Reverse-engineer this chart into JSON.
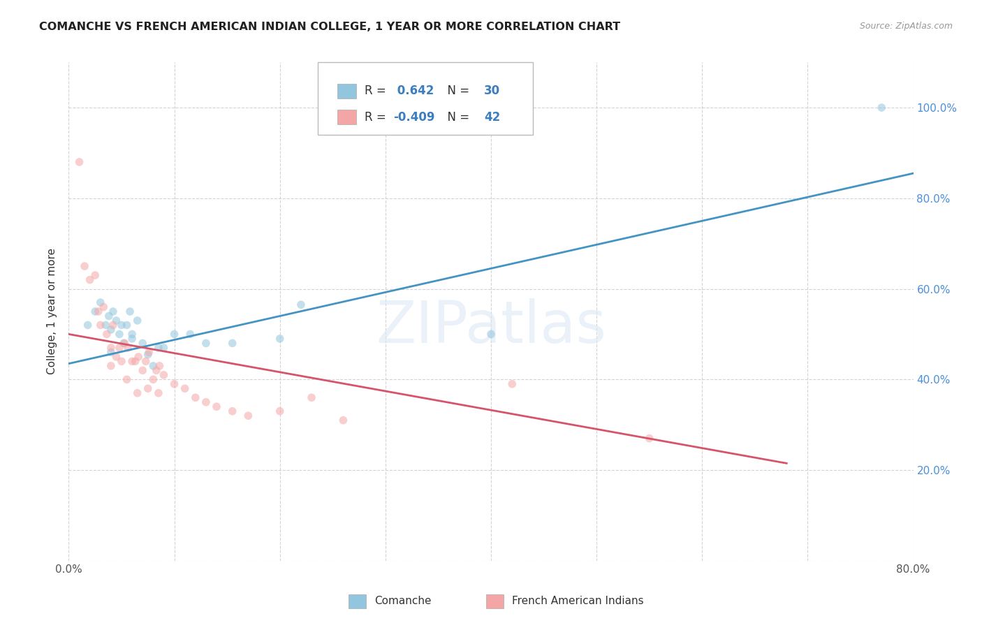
{
  "title": "COMANCHE VS FRENCH AMERICAN INDIAN COLLEGE, 1 YEAR OR MORE CORRELATION CHART",
  "source": "Source: ZipAtlas.com",
  "ylabel": "College, 1 year or more",
  "xlim": [
    0.0,
    0.8
  ],
  "ylim": [
    0.0,
    1.1
  ],
  "xtick_positions": [
    0.0,
    0.1,
    0.2,
    0.3,
    0.4,
    0.5,
    0.6,
    0.7,
    0.8
  ],
  "xticklabels": [
    "0.0%",
    "",
    "",
    "",
    "",
    "",
    "",
    "",
    "80.0%"
  ],
  "ytick_positions": [
    0.0,
    0.2,
    0.4,
    0.6,
    0.8,
    1.0
  ],
  "ytick_labels_right": [
    "",
    "20.0%",
    "40.0%",
    "60.0%",
    "80.0%",
    "100.0%"
  ],
  "blue_R": 0.642,
  "blue_N": 30,
  "pink_R": -0.409,
  "pink_N": 42,
  "blue_color": "#92c5de",
  "pink_color": "#f4a6a6",
  "blue_line_color": "#4393c3",
  "pink_line_color": "#d6546a",
  "watermark_text": "ZIPatlas",
  "blue_scatter_x": [
    0.018,
    0.025,
    0.03,
    0.035,
    0.038,
    0.04,
    0.042,
    0.045,
    0.048,
    0.05,
    0.052,
    0.055,
    0.058,
    0.06,
    0.065,
    0.07,
    0.075,
    0.08,
    0.085,
    0.09,
    0.1,
    0.115,
    0.13,
    0.155,
    0.2,
    0.22,
    0.4,
    0.77,
    0.04,
    0.06
  ],
  "blue_scatter_y": [
    0.52,
    0.55,
    0.57,
    0.52,
    0.54,
    0.51,
    0.55,
    0.53,
    0.5,
    0.52,
    0.48,
    0.52,
    0.55,
    0.5,
    0.53,
    0.48,
    0.455,
    0.43,
    0.47,
    0.47,
    0.5,
    0.5,
    0.48,
    0.48,
    0.49,
    0.565,
    0.5,
    1.0,
    0.46,
    0.49
  ],
  "pink_scatter_x": [
    0.01,
    0.015,
    0.02,
    0.025,
    0.028,
    0.03,
    0.033,
    0.036,
    0.04,
    0.042,
    0.045,
    0.048,
    0.05,
    0.053,
    0.056,
    0.06,
    0.063,
    0.066,
    0.07,
    0.073,
    0.076,
    0.08,
    0.083,
    0.086,
    0.09,
    0.1,
    0.11,
    0.12,
    0.13,
    0.14,
    0.155,
    0.17,
    0.2,
    0.23,
    0.26,
    0.42,
    0.55,
    0.04,
    0.055,
    0.065,
    0.075,
    0.085
  ],
  "pink_scatter_y": [
    0.88,
    0.65,
    0.62,
    0.63,
    0.55,
    0.52,
    0.56,
    0.5,
    0.47,
    0.52,
    0.45,
    0.47,
    0.44,
    0.48,
    0.47,
    0.44,
    0.44,
    0.45,
    0.42,
    0.44,
    0.46,
    0.4,
    0.42,
    0.43,
    0.41,
    0.39,
    0.38,
    0.36,
    0.35,
    0.34,
    0.33,
    0.32,
    0.33,
    0.36,
    0.31,
    0.39,
    0.27,
    0.43,
    0.4,
    0.37,
    0.38,
    0.37
  ],
  "blue_line_x0": 0.0,
  "blue_line_x1": 0.8,
  "blue_line_y0": 0.435,
  "blue_line_y1": 0.855,
  "pink_line_x0": 0.0,
  "pink_line_x1": 0.68,
  "pink_line_y0": 0.5,
  "pink_line_y1": 0.215,
  "grid_color": "#c8c8c8",
  "background_color": "#ffffff",
  "scatter_size": 70,
  "scatter_alpha": 0.55,
  "line_width": 2.0
}
